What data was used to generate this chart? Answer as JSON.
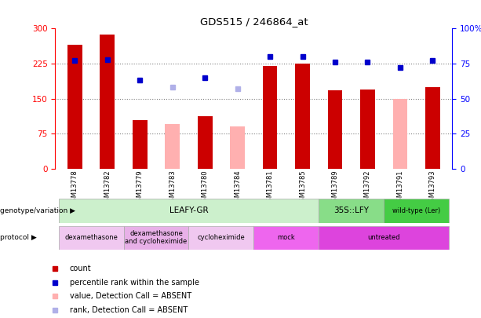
{
  "title": "GDS515 / 246864_at",
  "samples": [
    "GSM13778",
    "GSM13782",
    "GSM13779",
    "GSM13783",
    "GSM13780",
    "GSM13784",
    "GSM13781",
    "GSM13785",
    "GSM13789",
    "GSM13792",
    "GSM13791",
    "GSM13793"
  ],
  "count_values": [
    265,
    288,
    103,
    95,
    113,
    90,
    220,
    225,
    168,
    170,
    150,
    175
  ],
  "count_absent": [
    false,
    false,
    false,
    true,
    false,
    true,
    false,
    false,
    false,
    false,
    true,
    false
  ],
  "rank_values": [
    77,
    78,
    63,
    58,
    65,
    57,
    80,
    80,
    76,
    76,
    72,
    77
  ],
  "rank_absent": [
    false,
    false,
    false,
    true,
    false,
    true,
    false,
    false,
    false,
    false,
    false,
    false
  ],
  "count_color": "#cc0000",
  "count_absent_color": "#ffb0b0",
  "rank_color": "#0000cc",
  "rank_absent_color": "#b0b0e8",
  "ylim_left": [
    0,
    300
  ],
  "ylim_right": [
    0,
    100
  ],
  "yticks_left": [
    0,
    75,
    150,
    225,
    300
  ],
  "ytick_labels_left": [
    "0",
    "75",
    "150",
    "225",
    "300"
  ],
  "yticks_right": [
    0,
    25,
    50,
    75,
    100
  ],
  "ytick_labels_right": [
    "0",
    "25",
    "50",
    "75",
    "100%"
  ],
  "hlines": [
    75,
    150,
    225
  ],
  "genotype_groups": [
    {
      "label": "LEAFY-GR",
      "start": 0,
      "end": 7,
      "color": "#ccf0cc"
    },
    {
      "label": "35S::LFY",
      "start": 8,
      "end": 9,
      "color": "#88dd88"
    },
    {
      "label": "wild-type (Ler)",
      "start": 10,
      "end": 11,
      "color": "#44cc44"
    }
  ],
  "protocol_groups": [
    {
      "label": "dexamethasone",
      "start": 0,
      "end": 1,
      "color": "#f0c8f0"
    },
    {
      "label": "dexamethasone\nand cycloheximide",
      "start": 2,
      "end": 3,
      "color": "#e8b0e8"
    },
    {
      "label": "cycloheximide",
      "start": 4,
      "end": 5,
      "color": "#f0c8f0"
    },
    {
      "label": "mock",
      "start": 6,
      "end": 7,
      "color": "#ee66ee"
    },
    {
      "label": "untreated",
      "start": 8,
      "end": 11,
      "color": "#dd44dd"
    }
  ],
  "bar_width": 0.45,
  "figsize": [
    6.13,
    4.05
  ],
  "dpi": 100
}
